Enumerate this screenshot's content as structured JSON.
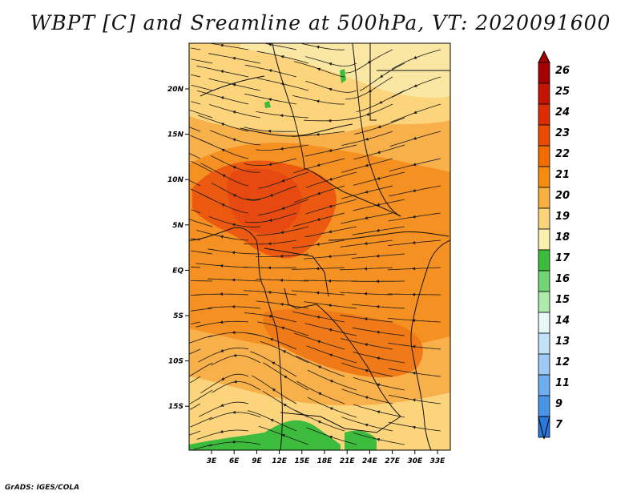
{
  "title": "WBPT [C] and Sreamline at 500hPa, VT: 2020091600",
  "credit": "GrADS: IGES/COLA",
  "map": {
    "lon_labels": [
      "3E",
      "6E",
      "9E",
      "12E",
      "15E",
      "18E",
      "21E",
      "24E",
      "27E",
      "30E",
      "33E"
    ],
    "lat_labels": [
      "20N",
      "15N",
      "10N",
      "5N",
      "EQ",
      "5S",
      "10S",
      "15S"
    ],
    "lon_range": [
      0,
      35
    ],
    "lat_range": [
      -20,
      25
    ]
  },
  "colorbar": {
    "labels": [
      "26",
      "25",
      "24",
      "23",
      "22",
      "21",
      "20",
      "19",
      "18",
      "17",
      "16",
      "15",
      "14",
      "13",
      "12",
      "11",
      "9",
      "7"
    ],
    "colors": [
      "#a40000",
      "#c41400",
      "#dd2c00",
      "#ec4a00",
      "#f26c00",
      "#f58c10",
      "#f8b040",
      "#fbd47c",
      "#fbf0ae",
      "#3dbb3d",
      "#72d472",
      "#acebac",
      "#e8f8f8",
      "#c2e2f8",
      "#9ccaf4",
      "#6eaeee",
      "#4894e6",
      "#2a78dc"
    ]
  }
}
